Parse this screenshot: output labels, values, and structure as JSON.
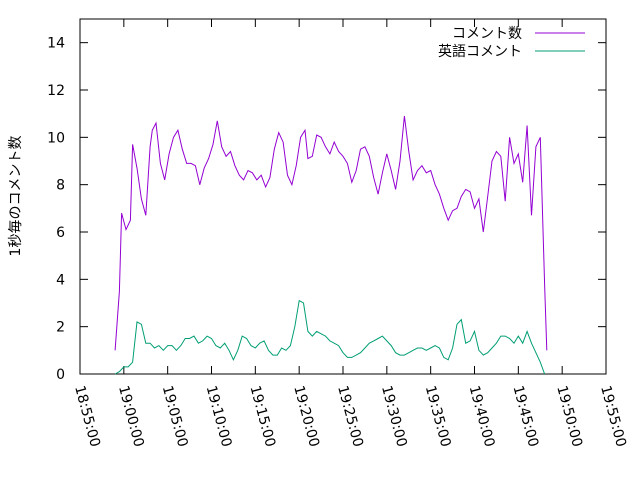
{
  "chart_data": {
    "type": "line",
    "ylabel": "1秒毎のコメント数",
    "xlabel": "",
    "ylim": [
      0,
      15
    ],
    "y_ticks": [
      0,
      2,
      4,
      6,
      8,
      10,
      12,
      14
    ],
    "x_ticks": [
      "18:55:00",
      "19:00:00",
      "19:05:00",
      "19:10:00",
      "19:15:00",
      "19:20:00",
      "19:25:00",
      "19:30:00",
      "19:35:00",
      "19:40:00",
      "19:45:00",
      "19:50:00",
      "19:55:00"
    ],
    "x_range": [
      "18:55:00",
      "19:55:00"
    ],
    "legend_position": "top-right",
    "grid": false,
    "series": [
      {
        "name": "コメント数",
        "color": "#9400d3",
        "points": [
          [
            "18:59:00",
            1.0
          ],
          [
            "18:59:30",
            3.5
          ],
          [
            "18:59:45",
            6.8
          ],
          [
            "19:00:15",
            6.1
          ],
          [
            "19:00:45",
            6.5
          ],
          [
            "19:01:00",
            9.7
          ],
          [
            "19:01:30",
            8.7
          ],
          [
            "19:02:00",
            7.4
          ],
          [
            "19:02:30",
            6.7
          ],
          [
            "19:03:00",
            9.6
          ],
          [
            "19:03:15",
            10.3
          ],
          [
            "19:03:40",
            10.6
          ],
          [
            "19:04:10",
            8.9
          ],
          [
            "19:04:40",
            8.2
          ],
          [
            "19:05:10",
            9.3
          ],
          [
            "19:05:40",
            10.0
          ],
          [
            "19:06:10",
            10.3
          ],
          [
            "19:06:40",
            9.5
          ],
          [
            "19:07:10",
            8.9
          ],
          [
            "19:07:40",
            8.9
          ],
          [
            "19:08:10",
            8.8
          ],
          [
            "19:08:40",
            8.0
          ],
          [
            "19:09:10",
            8.7
          ],
          [
            "19:09:40",
            9.1
          ],
          [
            "19:10:10",
            9.7
          ],
          [
            "19:10:40",
            10.7
          ],
          [
            "19:11:10",
            9.6
          ],
          [
            "19:11:40",
            9.2
          ],
          [
            "19:12:10",
            9.4
          ],
          [
            "19:12:40",
            8.8
          ],
          [
            "19:13:10",
            8.4
          ],
          [
            "19:13:40",
            8.2
          ],
          [
            "19:14:10",
            8.6
          ],
          [
            "19:14:40",
            8.5
          ],
          [
            "19:15:10",
            8.2
          ],
          [
            "19:15:40",
            8.4
          ],
          [
            "19:16:10",
            7.9
          ],
          [
            "19:16:40",
            8.3
          ],
          [
            "19:17:10",
            9.5
          ],
          [
            "19:17:40",
            10.2
          ],
          [
            "19:18:10",
            9.8
          ],
          [
            "19:18:40",
            8.4
          ],
          [
            "19:19:10",
            8.0
          ],
          [
            "19:19:40",
            8.8
          ],
          [
            "19:20:10",
            10.0
          ],
          [
            "19:20:40",
            10.3
          ],
          [
            "19:21:00",
            9.1
          ],
          [
            "19:21:30",
            9.2
          ],
          [
            "19:22:00",
            10.1
          ],
          [
            "19:22:30",
            10.0
          ],
          [
            "19:23:00",
            9.6
          ],
          [
            "19:23:30",
            9.3
          ],
          [
            "19:24:00",
            9.8
          ],
          [
            "19:24:30",
            9.4
          ],
          [
            "19:25:00",
            9.2
          ],
          [
            "19:25:30",
            8.9
          ],
          [
            "19:26:00",
            8.1
          ],
          [
            "19:26:30",
            8.6
          ],
          [
            "19:27:00",
            9.5
          ],
          [
            "19:27:30",
            9.6
          ],
          [
            "19:28:00",
            9.2
          ],
          [
            "19:28:30",
            8.3
          ],
          [
            "19:29:00",
            7.6
          ],
          [
            "19:29:30",
            8.5
          ],
          [
            "19:30:00",
            9.3
          ],
          [
            "19:30:30",
            8.6
          ],
          [
            "19:31:00",
            7.8
          ],
          [
            "19:31:30",
            9.0
          ],
          [
            "19:32:00",
            10.9
          ],
          [
            "19:32:30",
            9.4
          ],
          [
            "19:33:00",
            8.2
          ],
          [
            "19:33:30",
            8.6
          ],
          [
            "19:34:00",
            8.8
          ],
          [
            "19:34:30",
            8.5
          ],
          [
            "19:35:00",
            8.6
          ],
          [
            "19:35:30",
            8.0
          ],
          [
            "19:36:00",
            7.6
          ],
          [
            "19:36:30",
            7.0
          ],
          [
            "19:37:00",
            6.5
          ],
          [
            "19:37:30",
            6.9
          ],
          [
            "19:38:00",
            7.0
          ],
          [
            "19:38:30",
            7.5
          ],
          [
            "19:39:00",
            7.8
          ],
          [
            "19:39:30",
            7.7
          ],
          [
            "19:40:00",
            7.0
          ],
          [
            "19:40:30",
            7.4
          ],
          [
            "19:41:00",
            6.0
          ],
          [
            "19:41:30",
            7.5
          ],
          [
            "19:42:00",
            9.0
          ],
          [
            "19:42:30",
            9.4
          ],
          [
            "19:43:00",
            9.2
          ],
          [
            "19:43:30",
            7.3
          ],
          [
            "19:44:00",
            10.0
          ],
          [
            "19:44:30",
            8.9
          ],
          [
            "19:45:00",
            9.3
          ],
          [
            "19:45:30",
            8.1
          ],
          [
            "19:46:00",
            10.5
          ],
          [
            "19:46:30",
            6.7
          ],
          [
            "19:47:00",
            9.6
          ],
          [
            "19:47:30",
            10.0
          ],
          [
            "19:48:00",
            3.8
          ],
          [
            "19:48:15",
            1.0
          ]
        ]
      },
      {
        "name": "英語コメント",
        "color": "#009e73",
        "points": [
          [
            "18:59:00",
            0.0
          ],
          [
            "18:59:30",
            0.1
          ],
          [
            "19:00:00",
            0.3
          ],
          [
            "19:00:30",
            0.3
          ],
          [
            "19:01:00",
            0.5
          ],
          [
            "19:01:30",
            2.2
          ],
          [
            "19:02:00",
            2.1
          ],
          [
            "19:02:30",
            1.3
          ],
          [
            "19:03:00",
            1.3
          ],
          [
            "19:03:30",
            1.1
          ],
          [
            "19:04:00",
            1.2
          ],
          [
            "19:04:30",
            1.0
          ],
          [
            "19:05:00",
            1.2
          ],
          [
            "19:05:30",
            1.2
          ],
          [
            "19:06:00",
            1.0
          ],
          [
            "19:06:30",
            1.2
          ],
          [
            "19:07:00",
            1.5
          ],
          [
            "19:07:30",
            1.5
          ],
          [
            "19:08:00",
            1.6
          ],
          [
            "19:08:30",
            1.3
          ],
          [
            "19:09:00",
            1.4
          ],
          [
            "19:09:30",
            1.6
          ],
          [
            "19:10:00",
            1.5
          ],
          [
            "19:10:30",
            1.2
          ],
          [
            "19:11:00",
            1.1
          ],
          [
            "19:11:30",
            1.3
          ],
          [
            "19:12:00",
            1.0
          ],
          [
            "19:12:30",
            0.6
          ],
          [
            "19:13:00",
            1.0
          ],
          [
            "19:13:30",
            1.6
          ],
          [
            "19:14:00",
            1.5
          ],
          [
            "19:14:30",
            1.2
          ],
          [
            "19:15:00",
            1.1
          ],
          [
            "19:15:30",
            1.3
          ],
          [
            "19:16:00",
            1.4
          ],
          [
            "19:16:30",
            1.0
          ],
          [
            "19:17:00",
            0.8
          ],
          [
            "19:17:30",
            0.8
          ],
          [
            "19:18:00",
            1.1
          ],
          [
            "19:18:30",
            1.0
          ],
          [
            "19:19:00",
            1.2
          ],
          [
            "19:19:30",
            2.0
          ],
          [
            "19:20:00",
            3.1
          ],
          [
            "19:20:30",
            3.0
          ],
          [
            "19:21:00",
            1.8
          ],
          [
            "19:21:30",
            1.6
          ],
          [
            "19:22:00",
            1.8
          ],
          [
            "19:22:30",
            1.7
          ],
          [
            "19:23:00",
            1.6
          ],
          [
            "19:23:30",
            1.4
          ],
          [
            "19:24:00",
            1.3
          ],
          [
            "19:24:30",
            1.2
          ],
          [
            "19:25:00",
            0.9
          ],
          [
            "19:25:30",
            0.7
          ],
          [
            "19:26:00",
            0.7
          ],
          [
            "19:26:30",
            0.8
          ],
          [
            "19:27:00",
            0.9
          ],
          [
            "19:27:30",
            1.1
          ],
          [
            "19:28:00",
            1.3
          ],
          [
            "19:28:30",
            1.4
          ],
          [
            "19:29:00",
            1.5
          ],
          [
            "19:29:30",
            1.6
          ],
          [
            "19:30:00",
            1.4
          ],
          [
            "19:30:30",
            1.2
          ],
          [
            "19:31:00",
            0.9
          ],
          [
            "19:31:30",
            0.8
          ],
          [
            "19:32:00",
            0.8
          ],
          [
            "19:32:30",
            0.9
          ],
          [
            "19:33:00",
            1.0
          ],
          [
            "19:33:30",
            1.1
          ],
          [
            "19:34:00",
            1.1
          ],
          [
            "19:34:30",
            1.0
          ],
          [
            "19:35:00",
            1.1
          ],
          [
            "19:35:30",
            1.2
          ],
          [
            "19:36:00",
            1.1
          ],
          [
            "19:36:30",
            0.7
          ],
          [
            "19:37:00",
            0.6
          ],
          [
            "19:37:30",
            1.1
          ],
          [
            "19:38:00",
            2.1
          ],
          [
            "19:38:30",
            2.3
          ],
          [
            "19:39:00",
            1.3
          ],
          [
            "19:39:30",
            1.4
          ],
          [
            "19:40:00",
            1.8
          ],
          [
            "19:40:30",
            1.0
          ],
          [
            "19:41:00",
            0.8
          ],
          [
            "19:41:30",
            0.9
          ],
          [
            "19:42:00",
            1.1
          ],
          [
            "19:42:30",
            1.3
          ],
          [
            "19:43:00",
            1.6
          ],
          [
            "19:43:30",
            1.6
          ],
          [
            "19:44:00",
            1.5
          ],
          [
            "19:44:30",
            1.3
          ],
          [
            "19:45:00",
            1.6
          ],
          [
            "19:45:30",
            1.3
          ],
          [
            "19:46:00",
            1.8
          ],
          [
            "19:46:30",
            1.3
          ],
          [
            "19:47:00",
            0.9
          ],
          [
            "19:47:30",
            0.5
          ],
          [
            "19:48:00",
            0.0
          ]
        ]
      }
    ]
  }
}
